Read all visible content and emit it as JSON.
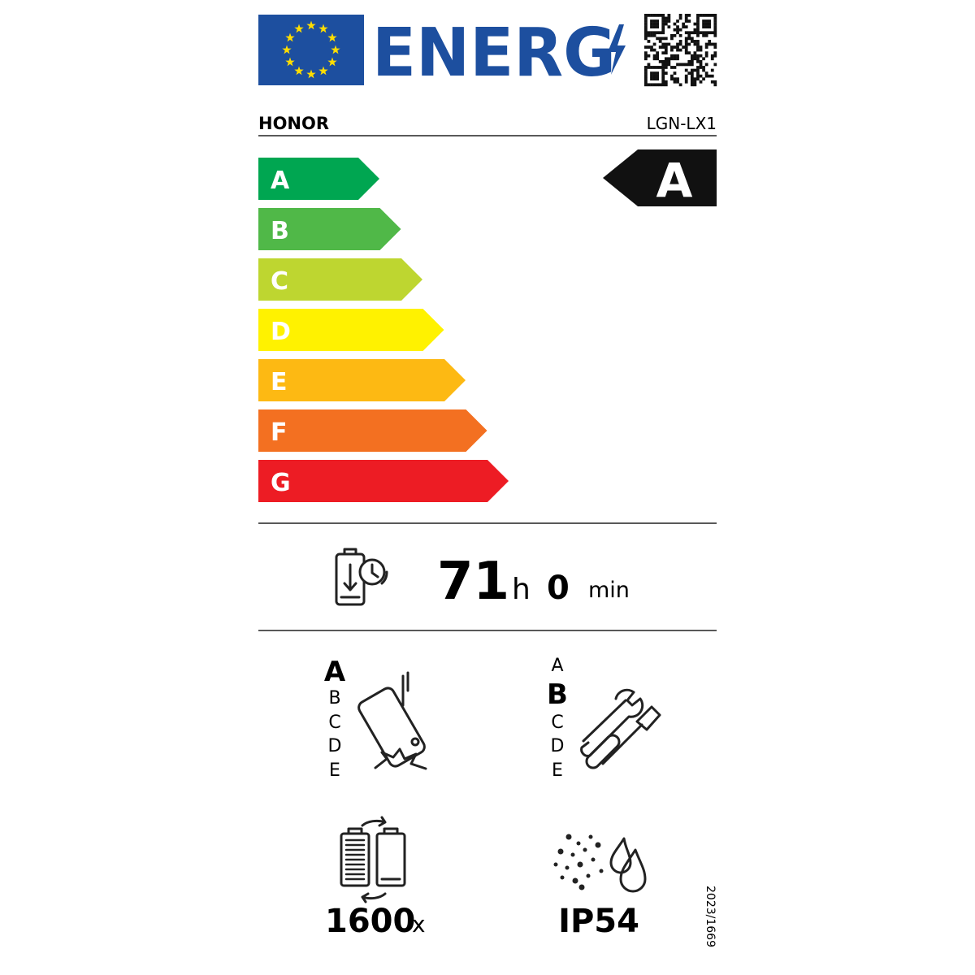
{
  "header": {
    "logo_text": "ENERG"
  },
  "supplier": "HONOR",
  "model": "LGN-LX1",
  "energy_scale": {
    "classes": [
      {
        "label": "A",
        "color": "#00a651"
      },
      {
        "label": "B",
        "color": "#50b848"
      },
      {
        "label": "C",
        "color": "#bed630"
      },
      {
        "label": "D",
        "color": "#fff200"
      },
      {
        "label": "E",
        "color": "#fdb913"
      },
      {
        "label": "F",
        "color": "#f37021"
      },
      {
        "label": "G",
        "color": "#ed1c24"
      }
    ],
    "rating": "A"
  },
  "battery_endurance": {
    "hours": 71,
    "hours_unit": "h",
    "minutes": 0,
    "minutes_unit": "min"
  },
  "drop_resistance": {
    "classes": [
      "A",
      "B",
      "C",
      "D",
      "E"
    ],
    "rating": "A"
  },
  "repairability": {
    "classes": [
      "A",
      "B",
      "C",
      "D",
      "E"
    ],
    "rating": "B"
  },
  "battery_cycles": {
    "value": 1600,
    "unit": "x"
  },
  "ingress_protection": "IP54",
  "regulation": "2023/1669"
}
